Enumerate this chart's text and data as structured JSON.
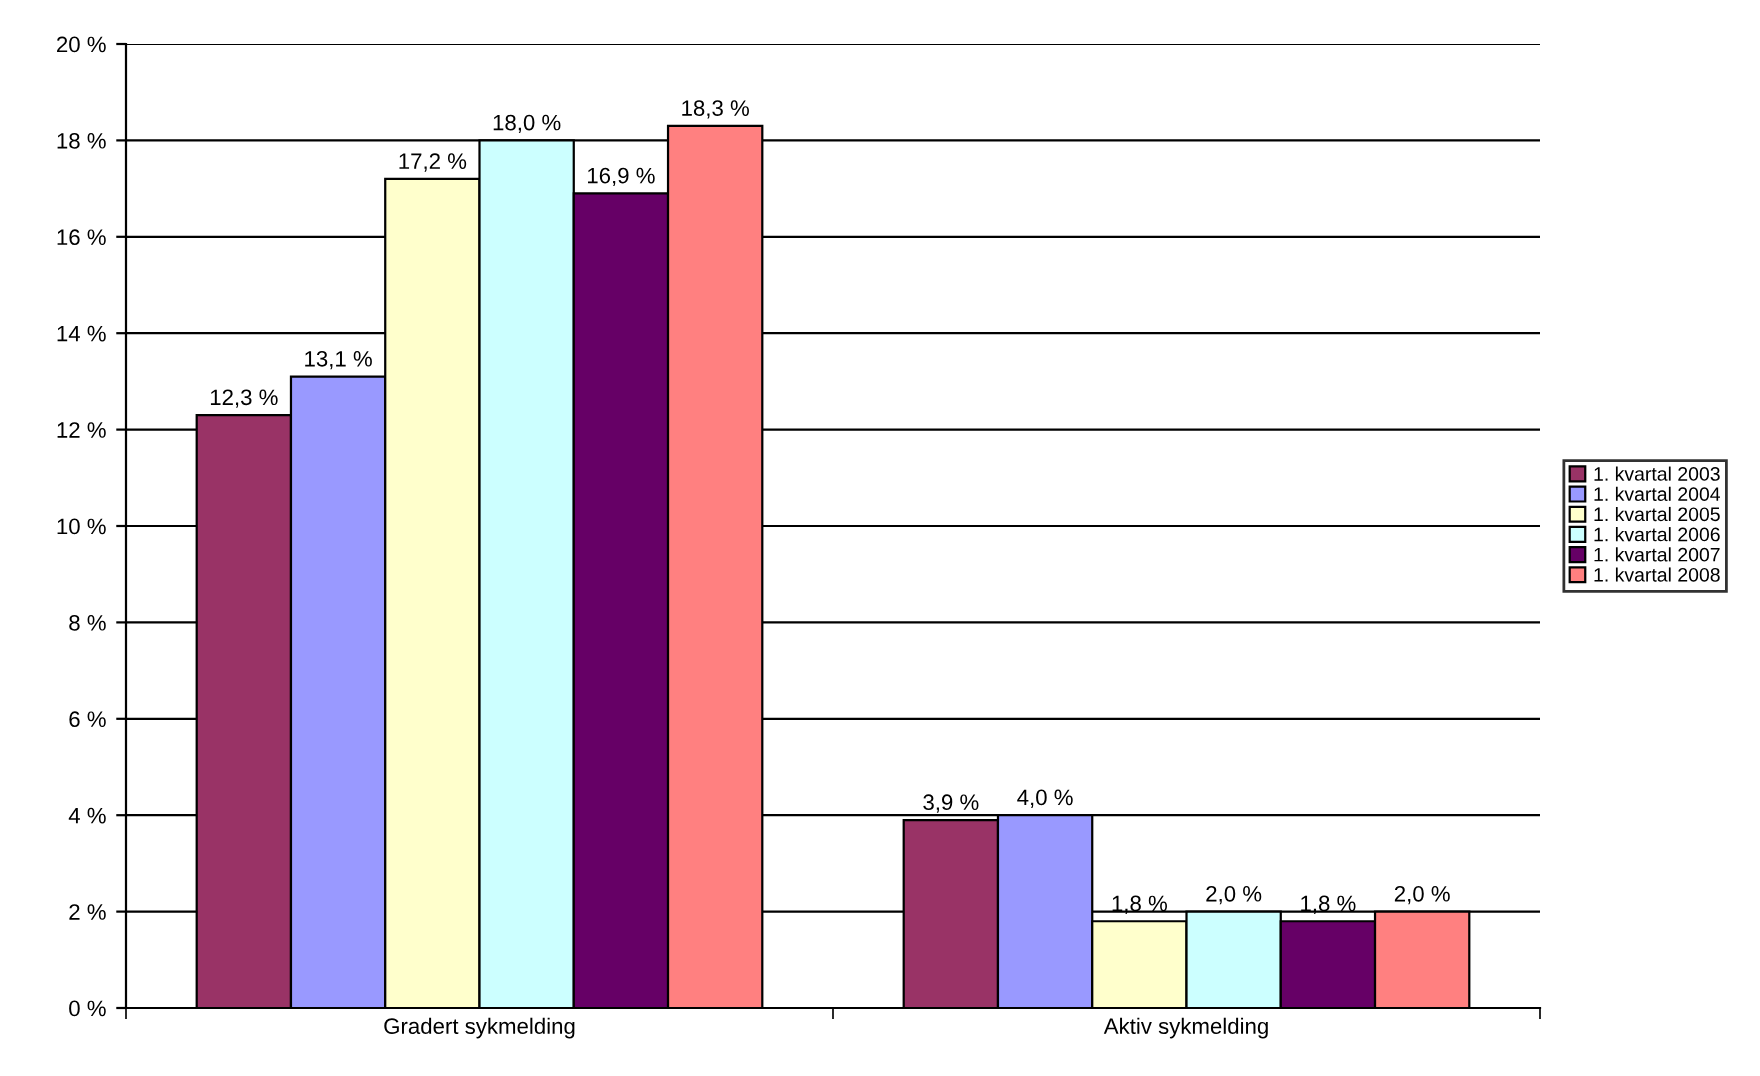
{
  "chart_data": {
    "type": "bar",
    "categories": [
      "Gradert sykmelding",
      "Aktiv sykmelding"
    ],
    "series": [
      {
        "name": "1. kvartal 2003",
        "color": "#993366",
        "values": [
          12.3,
          3.9
        ],
        "value_labels": [
          "12,3 %",
          "3,9 %"
        ]
      },
      {
        "name": "1. kvartal 2004",
        "color": "#9999ff",
        "values": [
          13.1,
          4.0
        ],
        "value_labels": [
          "13,1 %",
          "4,0 %"
        ]
      },
      {
        "name": "1. kvartal 2005",
        "color": "#ffffcc",
        "values": [
          17.2,
          1.8
        ],
        "value_labels": [
          "17,2 %",
          "1,8 %"
        ]
      },
      {
        "name": "1. kvartal 2006",
        "color": "#ccffff",
        "values": [
          18.0,
          2.0
        ],
        "value_labels": [
          "18,0 %",
          "2,0 %"
        ]
      },
      {
        "name": "1. kvartal 2007",
        "color": "#660066",
        "values": [
          16.9,
          1.8
        ],
        "value_labels": [
          "16,9 %",
          "1,8 %"
        ]
      },
      {
        "name": "1. kvartal 2008",
        "color": "#ff8080",
        "values": [
          18.3,
          2.0
        ],
        "value_labels": [
          "18,3 %",
          "2,0 %"
        ]
      }
    ],
    "ylim": [
      0,
      20
    ],
    "yticks": [
      {
        "value": 0,
        "label": "0 %"
      },
      {
        "value": 2,
        "label": "2 %"
      },
      {
        "value": 4,
        "label": "4 %"
      },
      {
        "value": 6,
        "label": "6 %"
      },
      {
        "value": 8,
        "label": "8 %"
      },
      {
        "value": 10,
        "label": "10 %"
      },
      {
        "value": 12,
        "label": "12 %"
      },
      {
        "value": 14,
        "label": "14 %"
      },
      {
        "value": 16,
        "label": "16 %"
      },
      {
        "value": 18,
        "label": "18 %"
      },
      {
        "value": 20,
        "label": "20 %"
      }
    ],
    "grid": "y",
    "legend": "right"
  }
}
